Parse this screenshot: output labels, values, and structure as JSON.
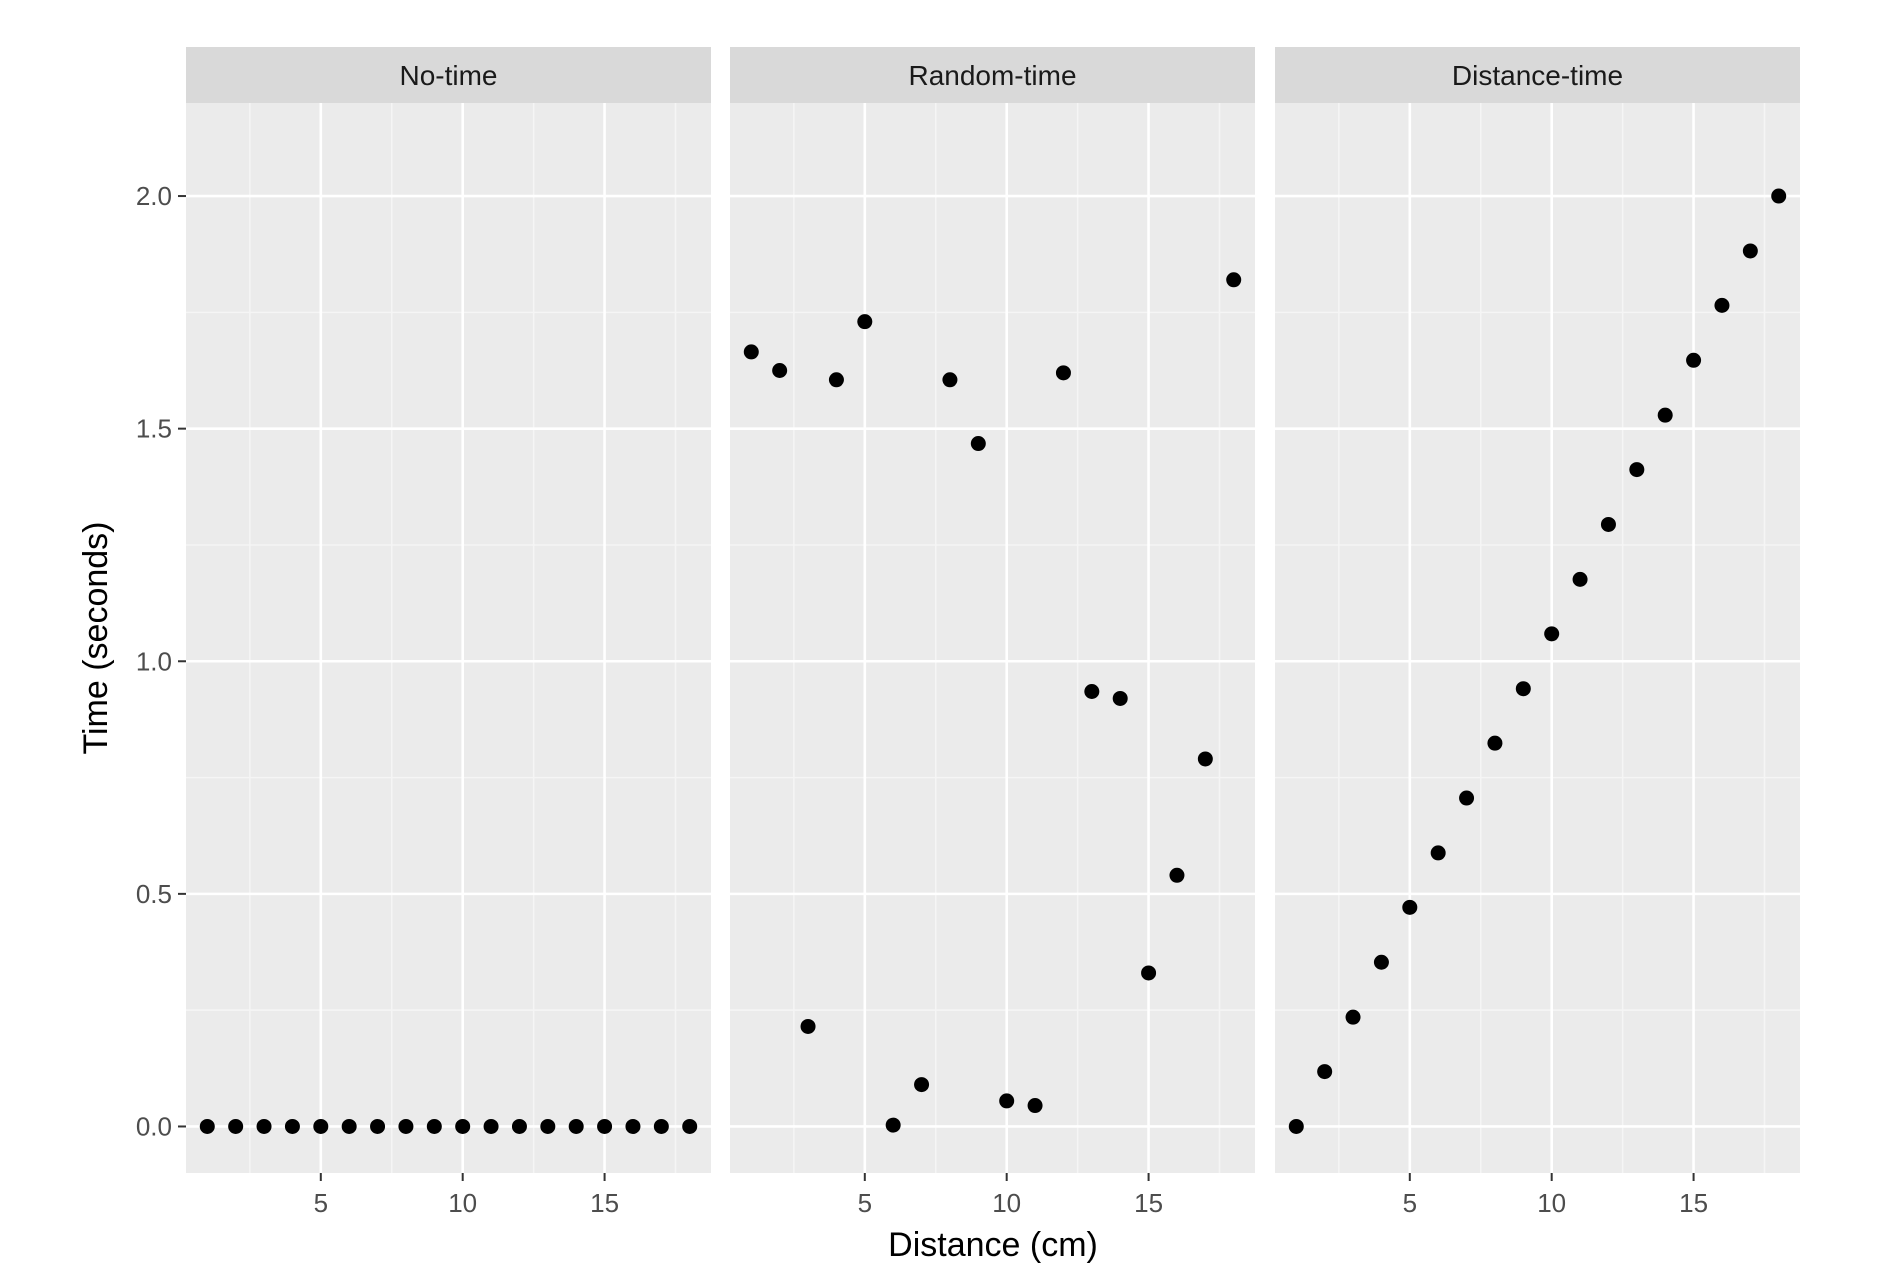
{
  "chart_data": {
    "type": "scatter",
    "xlabel": "Distance (cm)",
    "ylabel": "Time (seconds)",
    "xlim": [
      0.25,
      18.75
    ],
    "ylim": [
      -0.1,
      2.2
    ],
    "x_ticks": [
      5,
      10,
      15
    ],
    "x_tick_labels": [
      "5",
      "10",
      "15"
    ],
    "y_ticks": [
      0.0,
      0.5,
      1.0,
      1.5,
      2.0
    ],
    "y_tick_labels": [
      "0.0",
      "0.5",
      "1.0",
      "1.5",
      "2.0"
    ],
    "grid": true,
    "panels": [
      {
        "title": "No-time",
        "x": [
          1,
          2,
          3,
          4,
          5,
          6,
          7,
          8,
          9,
          10,
          11,
          12,
          13,
          14,
          15,
          16,
          17,
          18
        ],
        "y": [
          0,
          0,
          0,
          0,
          0,
          0,
          0,
          0,
          0,
          0,
          0,
          0,
          0,
          0,
          0,
          0,
          0,
          0
        ]
      },
      {
        "title": "Random-time",
        "x": [
          1,
          2,
          3,
          4,
          5,
          6,
          7,
          8,
          9,
          10,
          11,
          12,
          13,
          14,
          15,
          16,
          17,
          18
        ],
        "y": [
          1.665,
          1.625,
          0.215,
          1.605,
          1.73,
          0.003,
          0.09,
          1.605,
          1.468,
          0.055,
          0.045,
          1.62,
          0.935,
          0.92,
          0.33,
          0.54,
          0.79,
          1.82
        ]
      },
      {
        "title": "Distance-time",
        "x": [
          1,
          2,
          3,
          4,
          5,
          6,
          7,
          8,
          9,
          10,
          11,
          12,
          13,
          14,
          15,
          16,
          17,
          18
        ],
        "y": [
          0.0,
          0.118,
          0.235,
          0.353,
          0.471,
          0.588,
          0.706,
          0.824,
          0.941,
          1.059,
          1.176,
          1.294,
          1.412,
          1.529,
          1.647,
          1.765,
          1.882,
          2.0
        ]
      }
    ],
    "colors": {
      "panel_background": "#ebebeb",
      "strip_background": "#d9d9d9",
      "grid_major": "#ffffff",
      "grid_minor": "#f5f5f5",
      "point": "#000000",
      "tick_label": "#4d4d4d",
      "strip_text": "#1a1a1a",
      "axis_title": "#000000"
    }
  }
}
